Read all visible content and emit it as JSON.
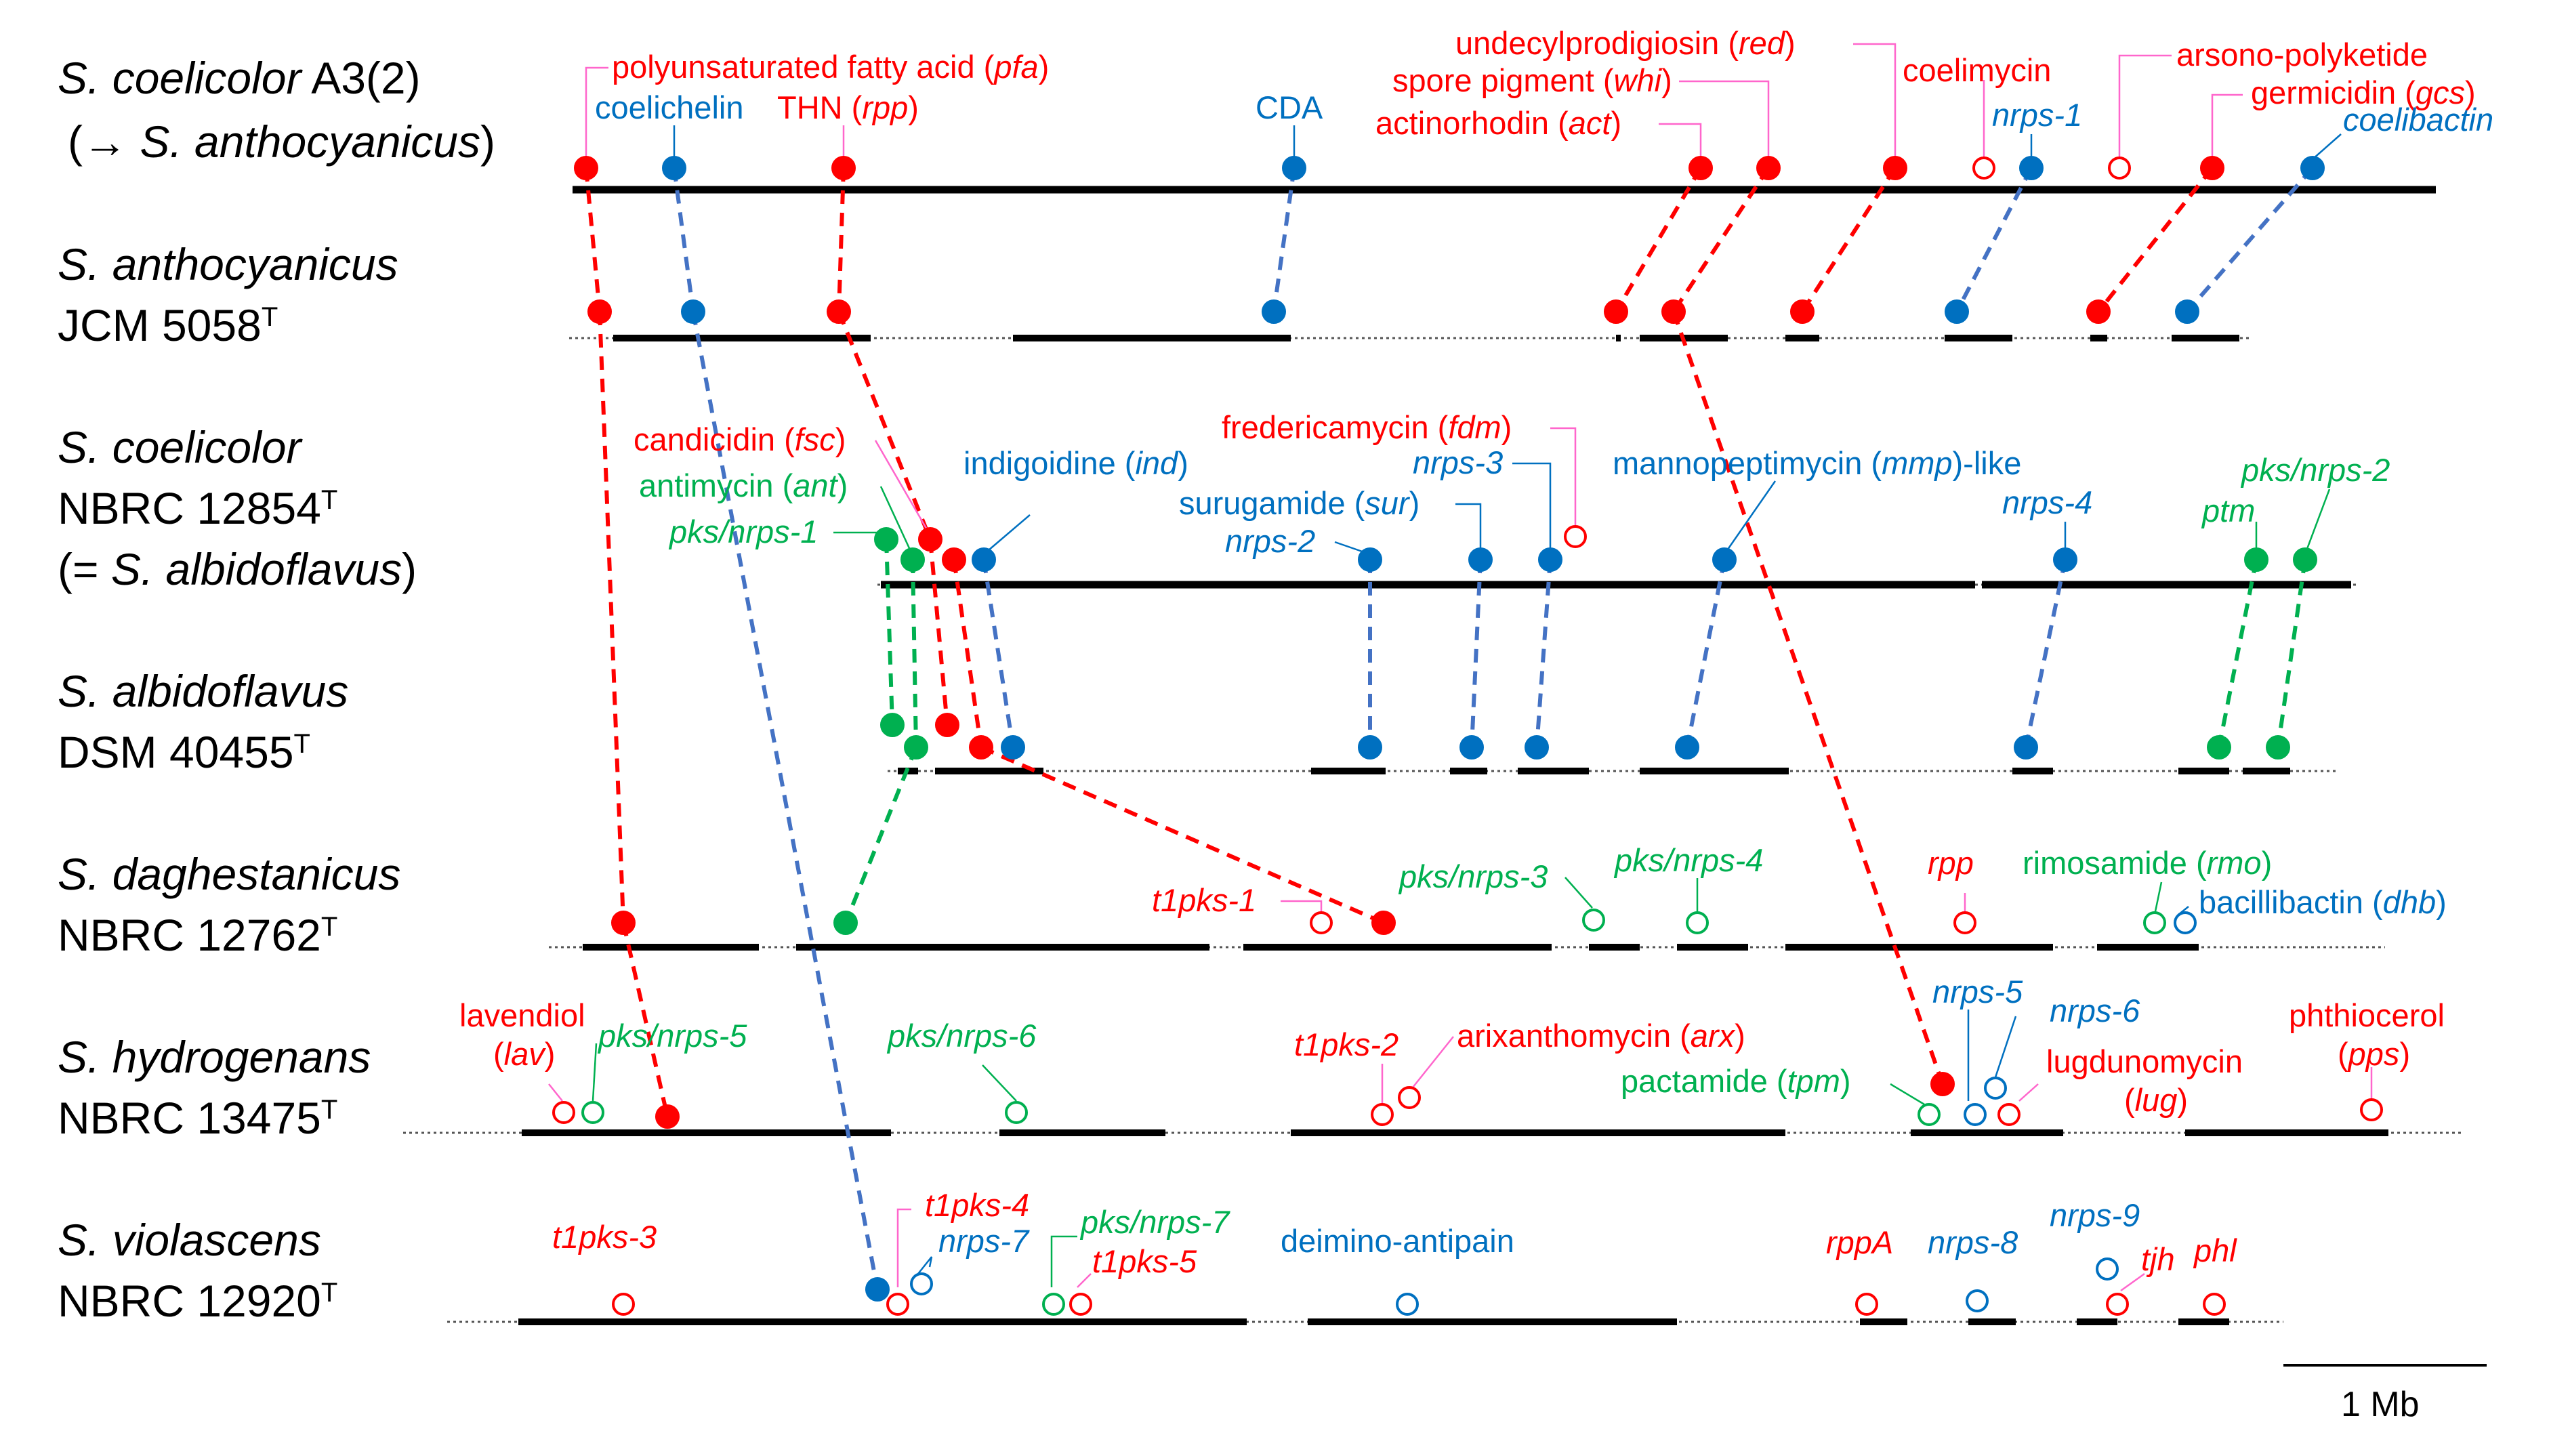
{
  "colors": {
    "pks_red": "#ff0000",
    "nrps_blue": "#0070c0",
    "hybrid_green": "#00b050",
    "leader_pink": "#ff66cc",
    "leader_blue": "#0070c0",
    "leader_green": "#00b050",
    "link_blue": "#4472c4",
    "chromosome": "#000000"
  },
  "species": [
    {
      "name": "S. coelicolor",
      "suffix": " A3(2)",
      "line2_pre": "(→ ",
      "line2_name": "S. anthocyanicus",
      "line2_post": ")"
    },
    {
      "name": "S. anthocyanicus",
      "line2_pre": "JCM 5058",
      "line2_sup": "T"
    },
    {
      "name": "S. coelicolor",
      "line2_pre": "NBRC 12854",
      "line2_sup": "T",
      "line3_pre": "(= ",
      "line3_name": "S. albidoflavus",
      "line3_post": ")"
    },
    {
      "name": "S. albidoflavus",
      "line2_pre": "DSM 40455",
      "line2_sup": "T"
    },
    {
      "name": "S. daghestanicus",
      "line2_pre": "NBRC 12762",
      "line2_sup": "T"
    },
    {
      "name": "S. hydrogenans",
      "line2_pre": "NBRC 13475",
      "line2_sup": "T"
    },
    {
      "name": "S. violascens",
      "line2_pre": "NBRC 12920",
      "line2_sup": "T"
    }
  ],
  "clusters": [
    {
      "row": 0,
      "type": "pks",
      "filled": true,
      "label": [
        {
          "t": "polyunsaturated fatty acid ("
        },
        {
          "t": "pfa",
          "i": true
        },
        {
          "t": ")"
        }
      ]
    },
    {
      "row": 0,
      "type": "nrps",
      "filled": true,
      "label": [
        {
          "t": "coelichelin"
        }
      ]
    },
    {
      "row": 0,
      "type": "pks",
      "filled": true,
      "label": [
        {
          "t": "THN ("
        },
        {
          "t": "rpp",
          "i": true
        },
        {
          "t": ")"
        }
      ]
    },
    {
      "row": 0,
      "type": "nrps",
      "filled": true,
      "label": [
        {
          "t": "CDA"
        }
      ]
    },
    {
      "row": 0,
      "type": "pks",
      "filled": true,
      "label": [
        {
          "t": "actinorhodin ("
        },
        {
          "t": "act",
          "i": true
        },
        {
          "t": ")"
        }
      ]
    },
    {
      "row": 0,
      "type": "pks",
      "filled": true,
      "label": [
        {
          "t": "spore pigment ("
        },
        {
          "t": "whi",
          "i": true
        },
        {
          "t": ")"
        }
      ]
    },
    {
      "row": 0,
      "type": "pks",
      "filled": true,
      "label": [
        {
          "t": "undecylprodigiosin ("
        },
        {
          "t": "red",
          "i": true
        },
        {
          "t": ")"
        }
      ]
    },
    {
      "row": 0,
      "type": "pks",
      "filled": false,
      "label": [
        {
          "t": "coelimycin"
        }
      ]
    },
    {
      "row": 0,
      "type": "nrps",
      "filled": true,
      "label": [
        {
          "t": "nrps-1",
          "i": true
        }
      ]
    },
    {
      "row": 0,
      "type": "pks",
      "filled": false,
      "label": [
        {
          "t": "arsono-polyketide"
        }
      ]
    },
    {
      "row": 0,
      "type": "pks",
      "filled": true,
      "label": [
        {
          "t": "germicidin ("
        },
        {
          "t": "gcs",
          "i": true
        },
        {
          "t": ")"
        }
      ]
    },
    {
      "row": 0,
      "type": "nrps",
      "filled": true,
      "label": [
        {
          "t": "coelibactin",
          "i": true
        }
      ]
    },
    {
      "row": 2,
      "type": "pks",
      "filled": true,
      "label": [
        {
          "t": "candicidin ("
        },
        {
          "t": "fsc",
          "i": true
        },
        {
          "t": ")"
        }
      ]
    },
    {
      "row": 2,
      "type": "hybrid",
      "filled": true,
      "label": [
        {
          "t": "antimycin ("
        },
        {
          "t": "ant",
          "i": true
        },
        {
          "t": ")"
        }
      ]
    },
    {
      "row": 2,
      "type": "hybrid",
      "filled": true,
      "label": [
        {
          "t": "pks/nrps-1",
          "i": true
        }
      ]
    },
    {
      "row": 2,
      "type": "nrps",
      "filled": true,
      "label": [
        {
          "t": "indigoidine ("
        },
        {
          "t": "ind",
          "i": true
        },
        {
          "t": ")"
        }
      ]
    },
    {
      "row": 2,
      "type": "pks",
      "filled": false,
      "label": [
        {
          "t": "fredericamycin ("
        },
        {
          "t": "fdm",
          "i": true
        },
        {
          "t": ")"
        }
      ]
    },
    {
      "row": 2,
      "type": "nrps",
      "filled": true,
      "label": [
        {
          "t": "nrps-3",
          "i": true
        }
      ]
    },
    {
      "row": 2,
      "type": "nrps",
      "filled": true,
      "label": [
        {
          "t": "surugamide ("
        },
        {
          "t": "sur",
          "i": true
        },
        {
          "t": ")"
        }
      ]
    },
    {
      "row": 2,
      "type": "nrps",
      "filled": true,
      "label": [
        {
          "t": "nrps-2",
          "i": true
        }
      ]
    },
    {
      "row": 2,
      "type": "nrps",
      "filled": true,
      "label": [
        {
          "t": "mannopeptimycin ("
        },
        {
          "t": "mmp",
          "i": true
        },
        {
          "t": ")-like"
        }
      ]
    },
    {
      "row": 2,
      "type": "nrps",
      "filled": true,
      "label": [
        {
          "t": "nrps-4",
          "i": true
        }
      ]
    },
    {
      "row": 2,
      "type": "hybrid",
      "filled": true,
      "label": [
        {
          "t": "pks/nrps-2",
          "i": true
        }
      ]
    },
    {
      "row": 2,
      "type": "hybrid",
      "filled": true,
      "label": [
        {
          "t": "ptm",
          "i": true
        }
      ]
    },
    {
      "row": 4,
      "type": "pks",
      "filled": false,
      "label": [
        {
          "t": "t1pks-1",
          "i": true
        }
      ]
    },
    {
      "row": 4,
      "type": "hybrid",
      "filled": false,
      "label": [
        {
          "t": "pks/nrps-3",
          "i": true
        }
      ]
    },
    {
      "row": 4,
      "type": "hybrid",
      "filled": false,
      "label": [
        {
          "t": "pks/nrps-4",
          "i": true
        }
      ]
    },
    {
      "row": 4,
      "type": "pks",
      "filled": false,
      "label": [
        {
          "t": "rpp",
          "i": true
        }
      ]
    },
    {
      "row": 4,
      "type": "hybrid",
      "filled": false,
      "label": [
        {
          "t": "rimosamide ("
        },
        {
          "t": "rmo",
          "i": true
        },
        {
          "t": ")"
        }
      ]
    },
    {
      "row": 4,
      "type": "nrps",
      "filled": false,
      "label": [
        {
          "t": "bacillibactin ("
        },
        {
          "t": "dhb",
          "i": true
        },
        {
          "t": ")"
        }
      ]
    },
    {
      "row": 5,
      "type": "pks",
      "filled": false,
      "label": [
        {
          "t": "lavendiol"
        },
        {
          "t": "lav",
          "i": true
        }
      ]
    },
    {
      "row": 5,
      "type": "hybrid",
      "filled": false,
      "label": [
        {
          "t": "pks/nrps-5",
          "i": true
        }
      ]
    },
    {
      "row": 5,
      "type": "hybrid",
      "filled": false,
      "label": [
        {
          "t": "pks/nrps-6",
          "i": true
        }
      ]
    },
    {
      "row": 5,
      "type": "pks",
      "filled": false,
      "label": [
        {
          "t": "t1pks-2",
          "i": true
        }
      ]
    },
    {
      "row": 5,
      "type": "pks",
      "filled": false,
      "label": [
        {
          "t": "arixanthomycin ("
        },
        {
          "t": "arx",
          "i": true
        },
        {
          "t": ")"
        }
      ]
    },
    {
      "row": 5,
      "type": "hybrid",
      "filled": false,
      "label": [
        {
          "t": "pactamide ("
        },
        {
          "t": "tpm",
          "i": true
        },
        {
          "t": ")"
        }
      ]
    },
    {
      "row": 5,
      "type": "nrps",
      "filled": false,
      "label": [
        {
          "t": "nrps-5",
          "i": true
        }
      ]
    },
    {
      "row": 5,
      "type": "nrps",
      "filled": false,
      "label": [
        {
          "t": "nrps-6",
          "i": true
        }
      ]
    },
    {
      "row": 5,
      "type": "pks",
      "filled": false,
      "label": [
        {
          "t": "lugdunomycin"
        },
        {
          "t": "lug",
          "i": true
        }
      ]
    },
    {
      "row": 5,
      "type": "pks",
      "filled": false,
      "label": [
        {
          "t": "phthiocerol"
        },
        {
          "t": "pps",
          "i": true
        }
      ]
    },
    {
      "row": 6,
      "type": "pks",
      "filled": false,
      "label": [
        {
          "t": "t1pks-3",
          "i": true
        }
      ]
    },
    {
      "row": 6,
      "type": "pks",
      "filled": false,
      "label": [
        {
          "t": "t1pks-4",
          "i": true
        }
      ]
    },
    {
      "row": 6,
      "type": "nrps",
      "filled": false,
      "label": [
        {
          "t": "nrps-7",
          "i": true
        }
      ]
    },
    {
      "row": 6,
      "type": "hybrid",
      "filled": false,
      "label": [
        {
          "t": "pks/nrps-7",
          "i": true
        }
      ]
    },
    {
      "row": 6,
      "type": "pks",
      "filled": false,
      "label": [
        {
          "t": "t1pks-5",
          "i": true
        }
      ]
    },
    {
      "row": 6,
      "type": "nrps",
      "filled": false,
      "label": [
        {
          "t": "deimino-antipain"
        }
      ]
    },
    {
      "row": 6,
      "type": "pks",
      "filled": false,
      "label": [
        {
          "t": "rppA",
          "i": true
        }
      ]
    },
    {
      "row": 6,
      "type": "nrps",
      "filled": false,
      "label": [
        {
          "t": "nrps-8",
          "i": true
        }
      ]
    },
    {
      "row": 6,
      "type": "nrps",
      "filled": false,
      "label": [
        {
          "t": "nrps-9",
          "i": true
        }
      ]
    },
    {
      "row": 6,
      "type": "pks",
      "filled": false,
      "label": [
        {
          "t": "tjh",
          "i": true
        }
      ]
    },
    {
      "row": 6,
      "type": "pks",
      "filled": false,
      "label": [
        {
          "t": "phl",
          "i": true
        }
      ]
    }
  ],
  "scale_bar": {
    "label": "1 Mb"
  }
}
